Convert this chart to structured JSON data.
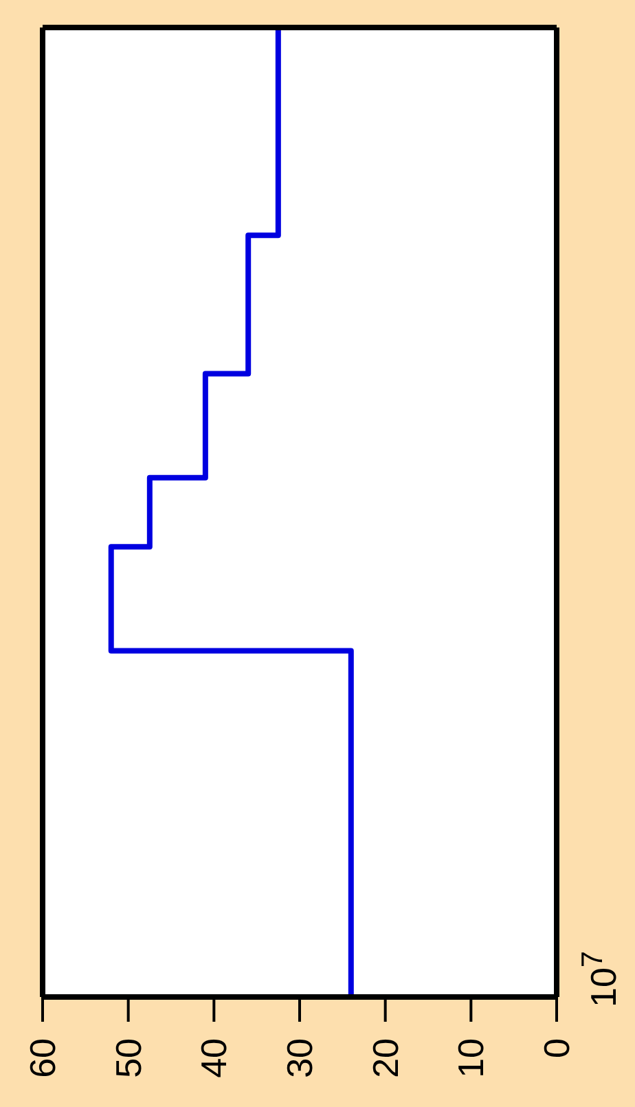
{
  "chart_data": {
    "type": "step",
    "orientation": "horizontal",
    "categories": [
      null,
      null,
      null,
      null,
      null,
      null,
      null,
      null,
      null,
      null,
      null,
      null,
      null,
      null,
      null,
      null,
      null,
      null,
      null,
      null,
      null,
      null,
      null,
      null,
      null,
      null,
      null,
      null,
      null
    ],
    "xlim": [
      60,
      0
    ],
    "xticks": [
      0,
      10,
      20,
      30,
      40,
      50,
      60
    ],
    "marker": "none",
    "annotations": [
      "10$^{7}$"
    ],
    "series": [
      {
        "color": "#0000e0",
        "values": [
          32.5,
          32.5,
          32.5,
          32.5,
          32.5,
          32.5,
          36,
          36,
          36,
          36,
          41,
          41,
          41,
          47.5,
          47.5,
          52,
          52,
          52,
          24,
          24,
          24,
          24,
          24,
          24,
          24,
          24,
          24,
          24,
          24
        ]
      }
    ]
  }
}
